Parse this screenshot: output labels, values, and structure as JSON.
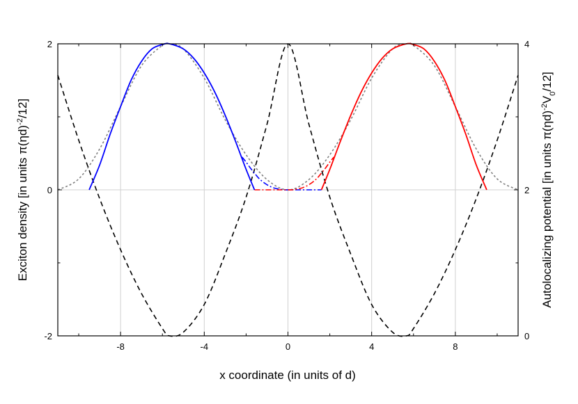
{
  "chart_data": {
    "type": "line",
    "xlabel": "x coordinate (in units of d)",
    "ylabel_left": {
      "pre": "Exciton density [in units π(ηd)",
      "sup": "-2",
      "post": "/12]"
    },
    "ylabel_right": {
      "pre": "Autolocalizing potential [in units π(ηd)",
      "sup": "-2",
      "mid": "V",
      "sub": "0",
      "post": "/12]"
    },
    "xlim": [
      -11,
      11
    ],
    "ylim_left": [
      -2,
      2
    ],
    "ylim_right": [
      0,
      4
    ],
    "x_ticks": [
      -8,
      -4,
      0,
      4,
      8
    ],
    "x_tick_labels": [
      "-8",
      "-4",
      "0",
      "4",
      "8"
    ],
    "y_left_ticks": [
      -2,
      0,
      2
    ],
    "y_left_tick_labels": [
      "-2",
      "0",
      "2"
    ],
    "y_right_ticks": [
      0,
      2,
      4
    ],
    "y_right_tick_labels": [
      "0",
      "2",
      "4"
    ],
    "grid": true,
    "colors": {
      "blue": "#0000ff",
      "red": "#ff0000",
      "gray": "#808080",
      "black": "#000000"
    },
    "series": [
      {
        "style": "solid",
        "color": "#0000ff",
        "axis": "left",
        "x": [
          -9.5,
          -9.0,
          -8.5,
          -8.0,
          -7.5,
          -7.0,
          -6.5,
          -6.0,
          -5.66,
          -5.0,
          -4.5,
          -4.0,
          -3.5,
          -3.0,
          -2.5,
          -2.0,
          -1.6
        ],
        "y": [
          0.0,
          0.34,
          0.76,
          1.14,
          1.5,
          1.76,
          1.93,
          1.99,
          2.0,
          1.93,
          1.8,
          1.6,
          1.34,
          1.02,
          0.66,
          0.28,
          0.0
        ]
      },
      {
        "style": "solid",
        "color": "#ff0000",
        "axis": "left",
        "x": [
          1.6,
          2.0,
          2.5,
          3.0,
          3.5,
          4.0,
          4.5,
          5.0,
          5.66,
          6.0,
          6.5,
          7.0,
          7.5,
          8.0,
          8.5,
          9.0,
          9.5
        ],
        "y": [
          0.0,
          0.28,
          0.66,
          1.02,
          1.34,
          1.6,
          1.8,
          1.93,
          2.0,
          1.99,
          1.93,
          1.76,
          1.5,
          1.14,
          0.76,
          0.34,
          0.0
        ]
      },
      {
        "style": "dashdot",
        "color": "#0000ff",
        "axis": "left",
        "x": [
          -2.2,
          -2.0,
          -1.8,
          -1.6,
          -1.4,
          -1.2,
          -1.0,
          -0.8,
          -0.6,
          -0.4,
          -0.2,
          0.0,
          0.4,
          0.8,
          1.2,
          1.6
        ],
        "y": [
          0.45,
          0.38,
          0.3,
          0.23,
          0.16,
          0.11,
          0.07,
          0.04,
          0.02,
          0.01,
          0.0,
          0.0,
          0.0,
          0.0,
          0.0,
          0.0
        ]
      },
      {
        "style": "dashdot",
        "color": "#ff0000",
        "axis": "left",
        "x": [
          -1.6,
          -1.2,
          -0.8,
          -0.4,
          0.0,
          0.2,
          0.4,
          0.6,
          0.8,
          1.0,
          1.2,
          1.4,
          1.6,
          1.8,
          2.0,
          2.2
        ],
        "y": [
          0.0,
          0.0,
          0.0,
          0.0,
          0.0,
          0.0,
          0.01,
          0.02,
          0.04,
          0.07,
          0.11,
          0.16,
          0.23,
          0.3,
          0.38,
          0.45
        ]
      },
      {
        "style": "dotted",
        "color": "#808080",
        "axis": "left",
        "x": [
          -11,
          -10,
          -9,
          -8,
          -7,
          -6,
          -5.66,
          -5,
          -4,
          -3,
          -2,
          -1,
          0,
          1,
          2,
          3,
          4,
          5,
          5.66,
          6,
          7,
          8,
          9,
          10,
          11
        ],
        "y": [
          0.0,
          0.15,
          0.56,
          1.14,
          1.7,
          1.98,
          2.0,
          1.93,
          1.53,
          0.96,
          0.48,
          0.14,
          0.0,
          0.14,
          0.48,
          0.96,
          1.53,
          1.93,
          2.0,
          1.98,
          1.7,
          1.14,
          0.56,
          0.15,
          0.0
        ]
      },
      {
        "style": "dashed",
        "color": "#000000",
        "axis": "right",
        "x": [
          -11,
          -10,
          -9,
          -8,
          -7,
          -6,
          -5.66,
          -5,
          -4,
          -3,
          -2,
          -1,
          0,
          1,
          2,
          3,
          4,
          5,
          5.66,
          6,
          7,
          8,
          9,
          10,
          11
        ],
        "y": [
          3.57,
          2.68,
          1.88,
          1.18,
          0.58,
          0.1,
          0.0,
          0.05,
          0.43,
          1.12,
          1.9,
          2.9,
          4.0,
          2.9,
          1.9,
          1.12,
          0.43,
          0.05,
          0.0,
          0.1,
          0.58,
          1.18,
          1.88,
          2.68,
          3.57
        ]
      }
    ]
  }
}
